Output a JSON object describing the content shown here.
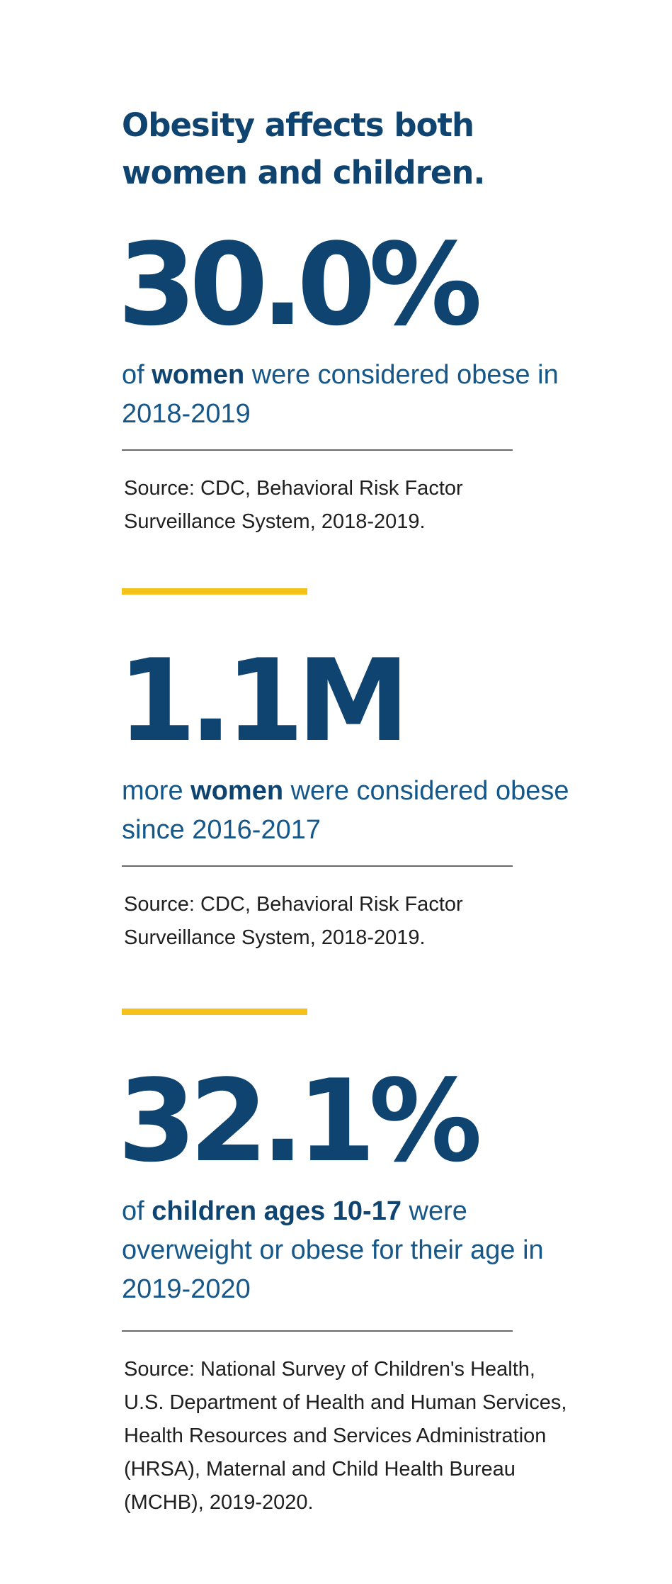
{
  "headline": "Obesity affects both women and children.",
  "stats": [
    {
      "value": "30.0%",
      "desc_pre": "of ",
      "desc_bold": "women",
      "desc_post": " were considered obese in 2018-2019",
      "source": "Source: CDC, Behavioral Risk Factor Surveillance System, 2018-2019."
    },
    {
      "value": "1.1M",
      "desc_pre": "more ",
      "desc_bold": "women",
      "desc_post": " were considered obese since 2016-2017",
      "source": "Source: CDC, Behavioral Risk Factor Surveillance System, 2018-2019."
    },
    {
      "value": "32.1%",
      "desc_pre": "of ",
      "desc_bold": "children ages 10-17",
      "desc_post": " were overweight or obese for their age in 2019-2020",
      "source": "Source: National Survey of Children's Health, U.S. Department of Health and Human Services, Health Resources and Services Administration (HRSA), Maternal and Child Health Bureau (MCHB), 2019-2020."
    }
  ],
  "colors": {
    "navy": "#0f4470",
    "text_blue": "#16578a",
    "accent_yellow": "#f5c21b",
    "divider_gray": "#6a6a6a",
    "source_text": "#1f1f1f"
  }
}
